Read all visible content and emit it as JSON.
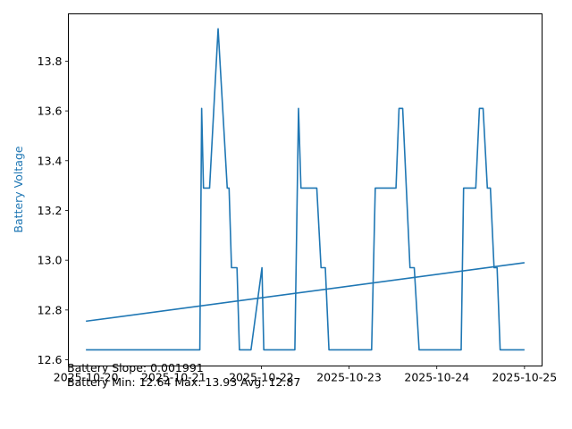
{
  "chart_data": {
    "type": "line",
    "xlabel": "",
    "ylabel": "Battery Voltage",
    "x_ticks": [
      "2025-10-20",
      "2025-10-21",
      "2025-10-22",
      "2025-10-23",
      "2025-10-24",
      "2025-10-25"
    ],
    "y_ticks": [
      "12.6",
      "12.8",
      "13.0",
      "13.2",
      "13.4",
      "13.6",
      "13.8"
    ],
    "xlim": [
      "2025-10-19 19:12",
      "2025-10-25 04:48"
    ],
    "ylim": [
      12.575,
      13.99
    ],
    "grid": false,
    "colors": {
      "line": "#1f77b4",
      "ylabel": "#1f77b4",
      "axes": "#000000"
    },
    "series": [
      {
        "points": [
          [
            "2025-10-20 00:00",
            12.64
          ],
          [
            "2025-10-21 07:10",
            12.64
          ],
          [
            "2025-10-21 07:40",
            13.61
          ],
          [
            "2025-10-21 08:10",
            13.29
          ],
          [
            "2025-10-21 09:50",
            13.29
          ],
          [
            "2025-10-21 12:10",
            13.93
          ],
          [
            "2025-10-21 14:40",
            13.29
          ],
          [
            "2025-10-21 15:10",
            13.29
          ],
          [
            "2025-10-21 15:50",
            12.97
          ],
          [
            "2025-10-21 17:20",
            12.97
          ],
          [
            "2025-10-21 18:00",
            12.64
          ],
          [
            "2025-10-21 21:10",
            12.64
          ],
          [
            "2025-10-22 00:10",
            12.97
          ],
          [
            "2025-10-22 00:40",
            12.64
          ],
          [
            "2025-10-22 09:10",
            12.64
          ],
          [
            "2025-10-22 10:10",
            13.61
          ],
          [
            "2025-10-22 10:50",
            13.29
          ],
          [
            "2025-10-22 15:10",
            13.29
          ],
          [
            "2025-10-22 16:20",
            12.97
          ],
          [
            "2025-10-22 17:30",
            12.97
          ],
          [
            "2025-10-22 18:30",
            12.64
          ],
          [
            "2025-10-23 06:10",
            12.64
          ],
          [
            "2025-10-23 07:10",
            13.29
          ],
          [
            "2025-10-23 12:50",
            13.29
          ],
          [
            "2025-10-23 13:40",
            13.61
          ],
          [
            "2025-10-23 14:40",
            13.61
          ],
          [
            "2025-10-23 16:40",
            12.97
          ],
          [
            "2025-10-23 17:50",
            12.97
          ],
          [
            "2025-10-23 19:10",
            12.64
          ],
          [
            "2025-10-24 06:40",
            12.64
          ],
          [
            "2025-10-24 07:20",
            13.29
          ],
          [
            "2025-10-24 10:40",
            13.29
          ],
          [
            "2025-10-24 11:40",
            13.61
          ],
          [
            "2025-10-24 12:40",
            13.61
          ],
          [
            "2025-10-24 13:50",
            13.29
          ],
          [
            "2025-10-24 14:40",
            13.29
          ],
          [
            "2025-10-24 15:40",
            12.97
          ],
          [
            "2025-10-24 16:30",
            12.97
          ],
          [
            "2025-10-24 17:20",
            12.64
          ],
          [
            "2025-10-25 00:00",
            12.64
          ]
        ]
      },
      {
        "points": [
          [
            "2025-10-20 00:00",
            12.755
          ],
          [
            "2025-10-25 00:00",
            12.99
          ]
        ]
      }
    ]
  },
  "stats": {
    "slope_line": "Battery Slope: 0.001991",
    "minmax_line": "Battery Min: 12.64 Max: 13.93 Avg: 12.87"
  }
}
